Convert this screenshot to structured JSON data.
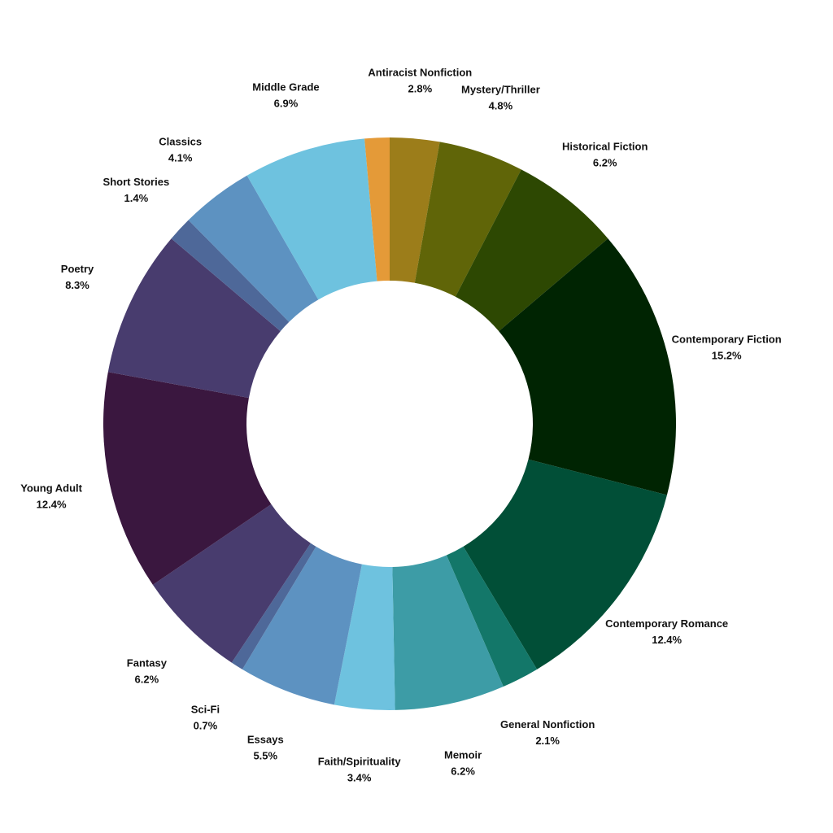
{
  "chart_data": {
    "type": "pie",
    "variant": "donut",
    "title": "",
    "legend": "none",
    "slices": [
      {
        "label": "Antiracist Nonfiction",
        "value": 2.8,
        "value_label": "2.8%",
        "color": "#9c7d1a"
      },
      {
        "label": "Mystery/Thriller",
        "value": 4.8,
        "value_label": "4.8%",
        "color": "#606508"
      },
      {
        "label": "Historical Fiction",
        "value": 6.2,
        "value_label": "6.2%",
        "color": "#2d4802"
      },
      {
        "label": "Contemporary Fiction",
        "value": 15.2,
        "value_label": "15.2%",
        "color": "#002402"
      },
      {
        "label": "Contemporary Romance",
        "value": 12.4,
        "value_label": "12.4%",
        "color": "#014f37"
      },
      {
        "label": "General Nonfiction",
        "value": 2.1,
        "value_label": "2.1%",
        "color": "#137769"
      },
      {
        "label": "Memoir",
        "value": 6.2,
        "value_label": "6.2%",
        "color": "#3d9ca6"
      },
      {
        "label": "Faith/Spirituality",
        "value": 3.4,
        "value_label": "3.4%",
        "color": "#6ec2df"
      },
      {
        "label": "Essays",
        "value": 5.5,
        "value_label": "5.5%",
        "color": "#5d92c1"
      },
      {
        "label": "Sci-Fi",
        "value": 0.7,
        "value_label": "0.7%",
        "color": "#4e6899"
      },
      {
        "label": "Fantasy",
        "value": 6.2,
        "value_label": "6.2%",
        "color": "#483c6e"
      },
      {
        "label": "Young Adult",
        "value": 12.4,
        "value_label": "12.4%",
        "color": "#3a173f"
      },
      {
        "label": "Poetry",
        "value": 8.3,
        "value_label": "8.3%",
        "color": "#483c6e"
      },
      {
        "label": "Short Stories",
        "value": 1.4,
        "value_label": "1.4%",
        "color": "#4e6899"
      },
      {
        "label": "Classics",
        "value": 4.1,
        "value_label": "4.1%",
        "color": "#5d92c1"
      },
      {
        "label": "Middle Grade",
        "value": 6.9,
        "value_label": "6.9%",
        "color": "#6ec2df"
      },
      {
        "label": "",
        "value": 1.4,
        "value_label": "",
        "color": "#e49a38"
      }
    ]
  }
}
